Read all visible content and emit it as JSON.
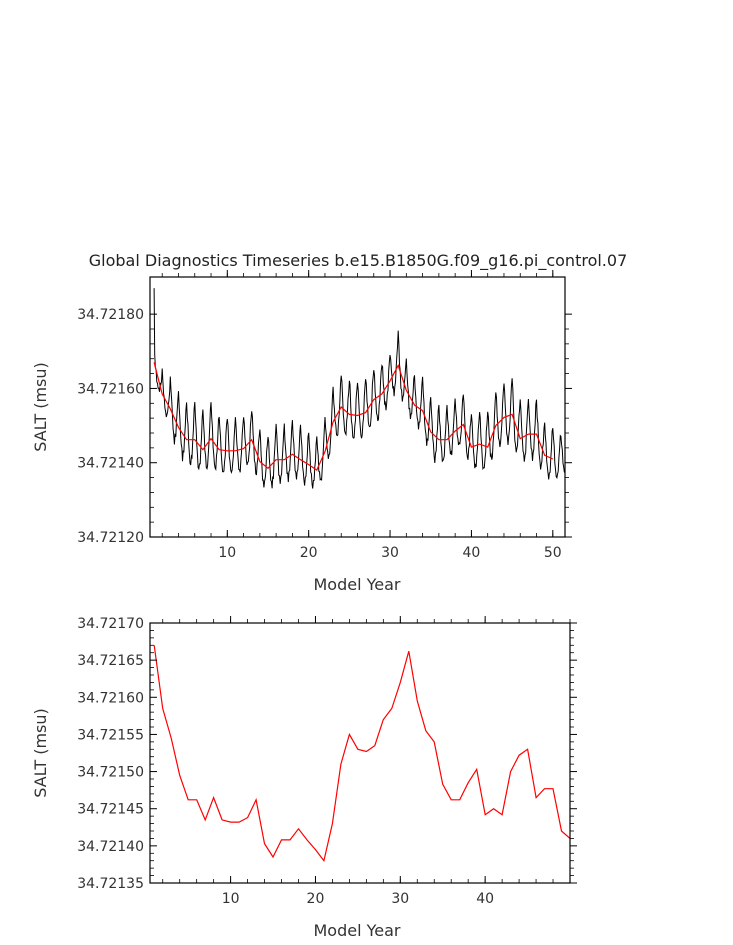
{
  "chart_data": [
    {
      "type": "line",
      "title": "Global Diagnostics Timeseries b.e15.B1850G.f09_g16.pi_control.07",
      "xlabel": "Model Year",
      "ylabel": "SALT (msu)",
      "xlim": [
        0.5,
        51.5
      ],
      "ylim": [
        34.7212,
        34.7219
      ],
      "xticks": [
        "10",
        "20",
        "30",
        "40",
        "50"
      ],
      "yticks": [
        "34.72120",
        "34.72140",
        "34.72160",
        "34.72180"
      ],
      "monthly_cycle": {
        "amplitude_by_year": [
          8e-05,
          0.00012,
          0.00018,
          0.00019,
          0.0002,
          0.0002,
          0.00021,
          0.0002,
          0.0002,
          0.00019,
          0.00019,
          0.00018,
          0.00018,
          0.00018,
          0.00018,
          0.00019,
          0.00018,
          0.00018,
          0.00018,
          0.00017,
          0.00017,
          0.00018,
          0.00018,
          0.00019,
          0.00021,
          0.0002,
          0.0002,
          0.00019,
          0.00018,
          0.00016,
          0.00017,
          0.00016,
          0.00016,
          0.00018,
          0.00019,
          0.00018,
          0.00017,
          0.00016,
          0.00018,
          0.00019,
          0.00019,
          0.0002,
          0.0002,
          0.00021,
          0.00021,
          0.0002,
          0.00019,
          0.00018,
          0.00018,
          0.00017,
          0.00012
        ],
        "first_year_value": 34.72187
      },
      "series": [
        {
          "color": "#000000",
          "style": "monthly"
        },
        {
          "color": "#ff0000",
          "style": "annual",
          "x": [
            1,
            2,
            3,
            4,
            5,
            6,
            7,
            8,
            9,
            10,
            11,
            12,
            13,
            14,
            15,
            16,
            17,
            18,
            19,
            20,
            21,
            22,
            23,
            24,
            25,
            26,
            27,
            28,
            29,
            30,
            31,
            32,
            33,
            34,
            35,
            36,
            37,
            38,
            39,
            40,
            41,
            42,
            43,
            44,
            45,
            46,
            47,
            48,
            49,
            50
          ],
          "values": [
            34.72167,
            34.721585,
            34.721545,
            34.721495,
            34.721462,
            34.721462,
            34.721435,
            34.721465,
            34.721435,
            34.721432,
            34.721432,
            34.721438,
            34.721462,
            34.721403,
            34.721385,
            34.721408,
            34.721408,
            34.721423,
            34.721408,
            34.721395,
            34.72138,
            34.72143,
            34.72151,
            34.72155,
            34.72153,
            34.721527,
            34.721535,
            34.72157,
            34.721585,
            34.72162,
            34.721662,
            34.721595,
            34.721555,
            34.72154,
            34.721483,
            34.721462,
            34.721462,
            34.721485,
            34.721503,
            34.721442,
            34.72145,
            34.721442,
            34.7215,
            34.721522,
            34.72153,
            34.721465,
            34.721477,
            34.721477,
            34.72142,
            34.72141
          ]
        }
      ]
    },
    {
      "type": "line",
      "xlabel": "Model Year",
      "ylabel": "SALT (msu)",
      "xlim": [
        0.5,
        50
      ],
      "ylim": [
        34.72135,
        34.7217
      ],
      "xticks": [
        "10",
        "20",
        "30",
        "40"
      ],
      "yticks": [
        "34.72135",
        "34.72140",
        "34.72145",
        "34.72150",
        "34.72155",
        "34.72160",
        "34.72165",
        "34.72170"
      ],
      "series": [
        {
          "color": "#ff0000",
          "x": [
            1,
            2,
            3,
            4,
            5,
            6,
            7,
            8,
            9,
            10,
            11,
            12,
            13,
            14,
            15,
            16,
            17,
            18,
            19,
            20,
            21,
            22,
            23,
            24,
            25,
            26,
            27,
            28,
            29,
            30,
            31,
            32,
            33,
            34,
            35,
            36,
            37,
            38,
            39,
            40,
            41,
            42,
            43,
            44,
            45,
            46,
            47,
            48,
            49,
            50
          ],
          "values": [
            34.72167,
            34.721585,
            34.721545,
            34.721495,
            34.721462,
            34.721462,
            34.721435,
            34.721465,
            34.721435,
            34.721432,
            34.721432,
            34.721438,
            34.721462,
            34.721403,
            34.721385,
            34.721408,
            34.721408,
            34.721423,
            34.721408,
            34.721395,
            34.72138,
            34.72143,
            34.72151,
            34.72155,
            34.72153,
            34.721527,
            34.721535,
            34.72157,
            34.721585,
            34.72162,
            34.721662,
            34.721595,
            34.721555,
            34.72154,
            34.721483,
            34.721462,
            34.721462,
            34.721485,
            34.721503,
            34.721442,
            34.72145,
            34.721442,
            34.7215,
            34.721522,
            34.72153,
            34.721465,
            34.721477,
            34.721477,
            34.72142,
            34.72141
          ]
        }
      ]
    }
  ]
}
